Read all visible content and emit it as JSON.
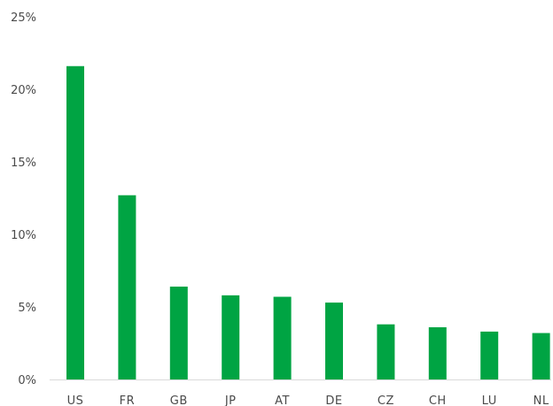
{
  "chart_data": {
    "type": "bar",
    "categories": [
      "US",
      "FR",
      "GB",
      "JP",
      "AT",
      "DE",
      "CZ",
      "CH",
      "LU",
      "NL"
    ],
    "values": [
      21.6,
      12.7,
      6.4,
      5.8,
      5.7,
      5.3,
      3.8,
      3.6,
      3.3,
      3.2
    ],
    "value_unit": "%",
    "ylim": [
      0,
      25
    ],
    "yticks": [
      0,
      5,
      10,
      15,
      20,
      25
    ],
    "ytick_labels": [
      "0%",
      "5%",
      "10%",
      "15%",
      "20%",
      "25%"
    ],
    "grid": false,
    "legend": "none",
    "bar_color": "#00a443"
  }
}
